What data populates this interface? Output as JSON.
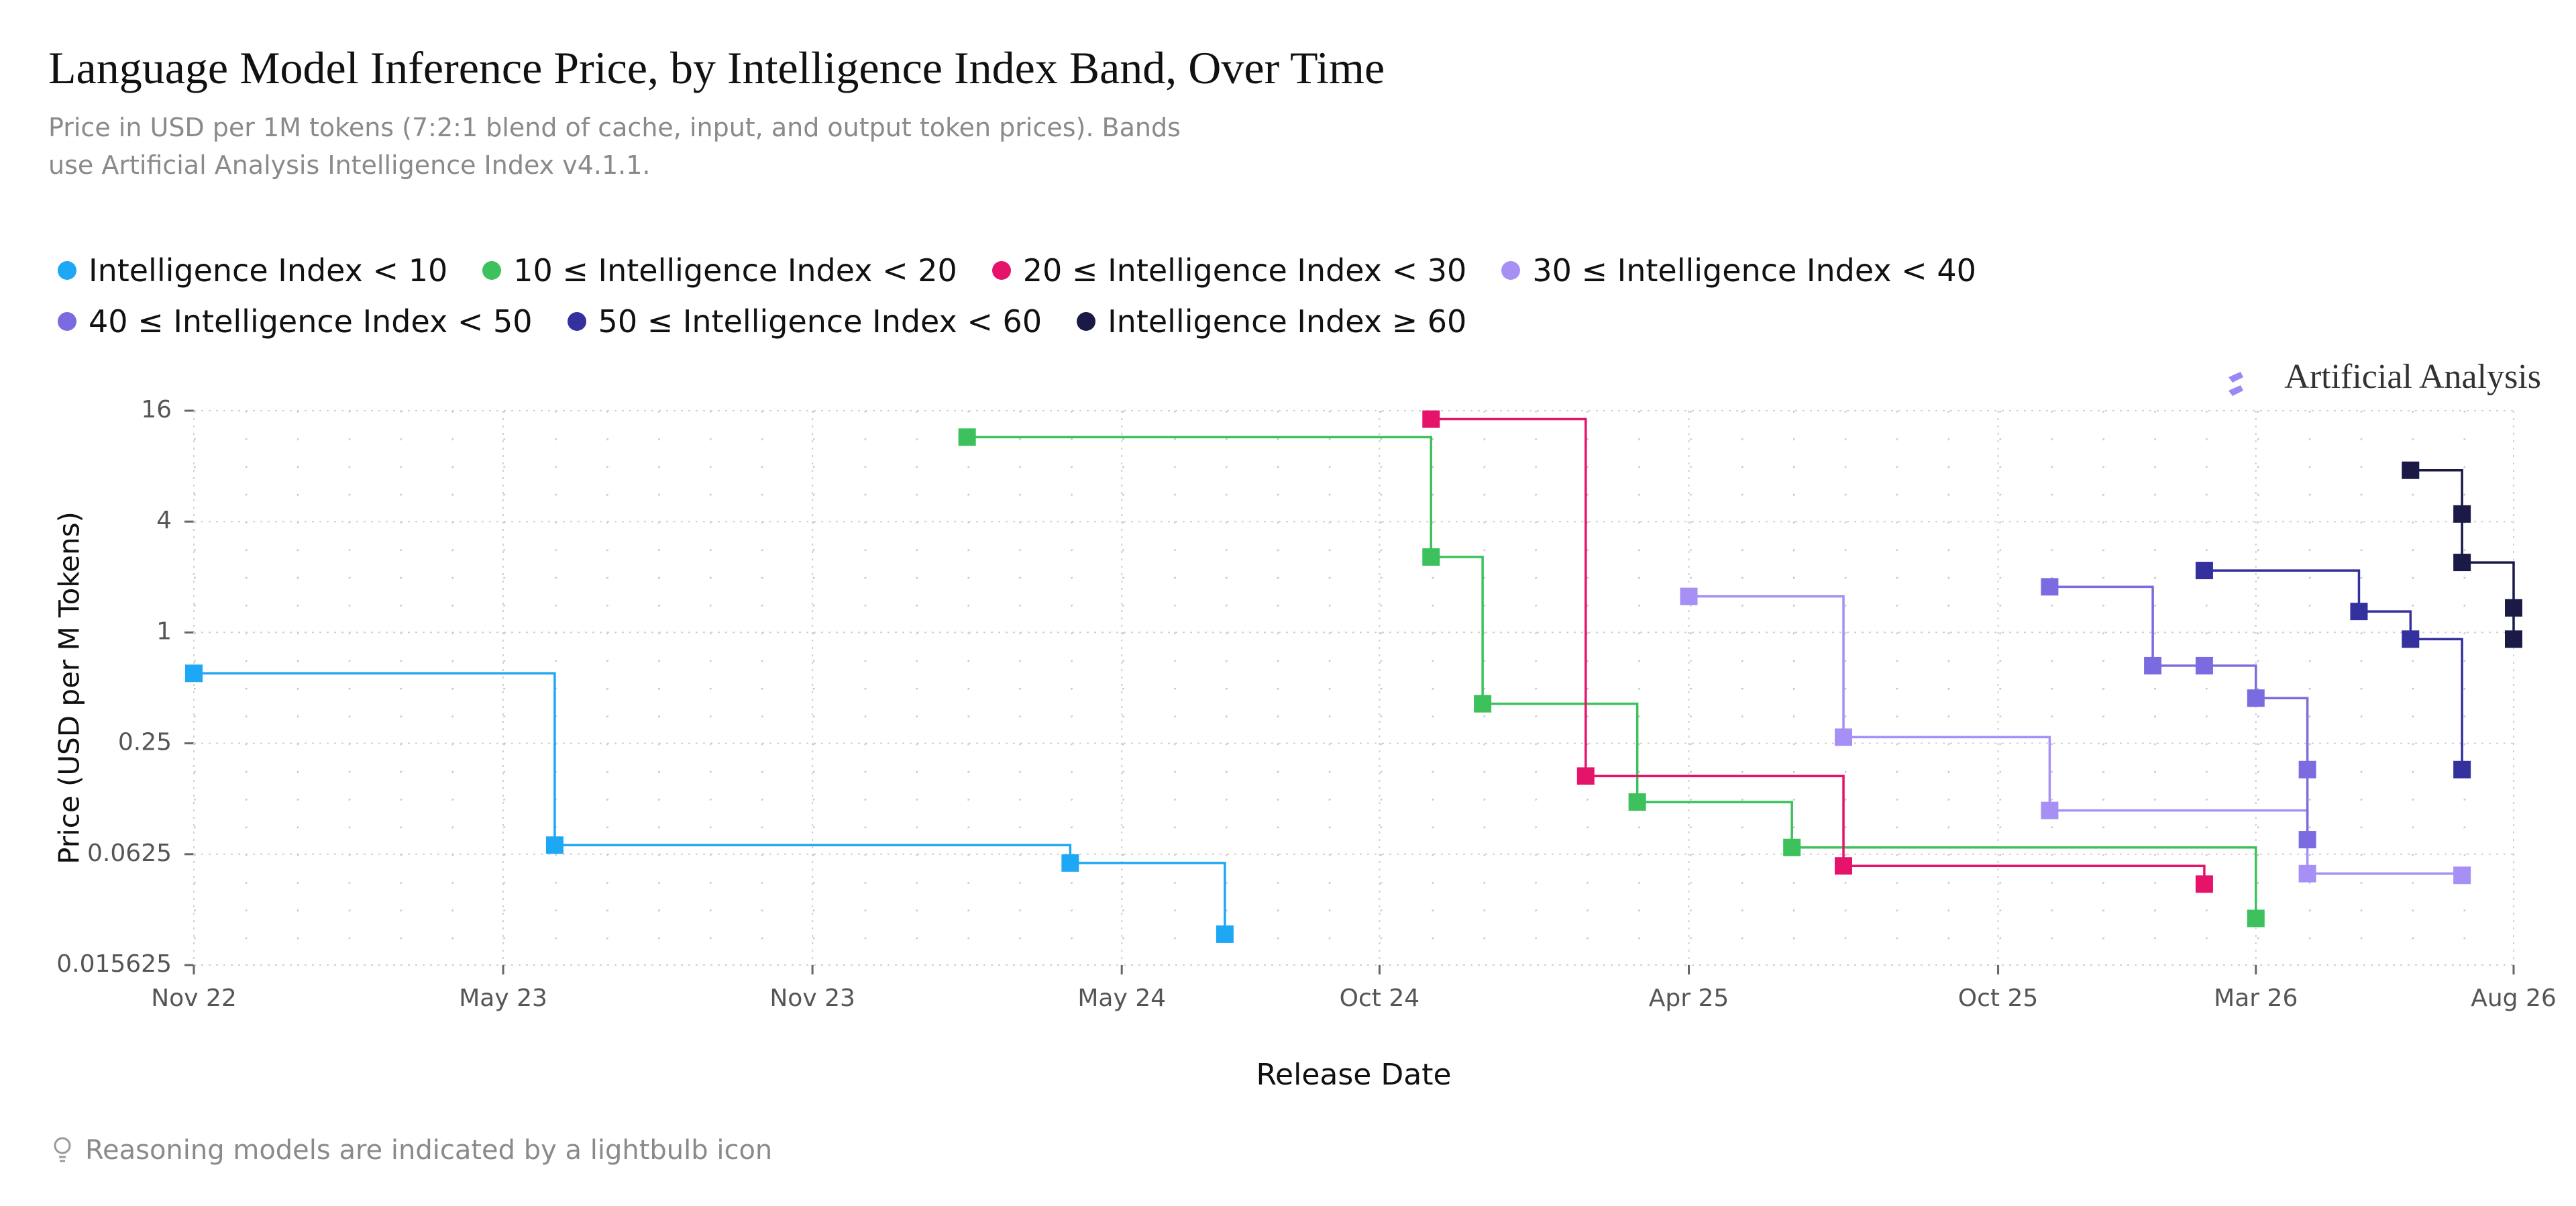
{
  "chart_data": {
    "type": "line",
    "step": "post",
    "title": "Language Model Inference Price, by Intelligence Index Band, Over Time",
    "subtitle": "Price in USD per 1M tokens (7:2:1 blend of cache, input, and output token prices). Bands use Artificial Analysis Intelligence Index v4.1.1.",
    "watermark": "Artificial Analysis",
    "x_label": "Release Date",
    "y_label": "Price (USD per M Tokens)",
    "footnote": "Reasoning models are indicated by a lightbulb icon",
    "log_scale": true,
    "grid": true,
    "xlim": [
      "2022-11",
      "2026-08"
    ],
    "xticks": [
      {
        "value": "2022-11",
        "label": "Nov 22"
      },
      {
        "value": "2023-05",
        "label": "May 23"
      },
      {
        "value": "2023-11",
        "label": "Nov 23"
      },
      {
        "value": "2024-05",
        "label": "May 24"
      },
      {
        "value": "2024-10",
        "label": "Oct 24"
      },
      {
        "value": "2025-04",
        "label": "Apr 25"
      },
      {
        "value": "2025-10",
        "label": "Oct 25"
      },
      {
        "value": "2026-03",
        "label": "Mar 26"
      },
      {
        "value": "2026-08",
        "label": "Aug 26"
      }
    ],
    "ylim": [
      0.015625,
      16
    ],
    "yticks": [
      16,
      4,
      1,
      0.25,
      0.0625,
      0.015625
    ],
    "series": [
      {
        "name": "Intelligence Index < 10",
        "color": "#1ea7f5",
        "x": [
          "2022-11",
          "2023-06",
          "2024-04",
          "2024-07"
        ],
        "values": [
          0.6,
          0.07,
          0.056,
          0.023
        ]
      },
      {
        "name": "10 ≤ Intelligence Index < 20",
        "color": "#3cc15c",
        "x": [
          "2024-02",
          "2024-11",
          "2024-12",
          "2025-03",
          "2025-06",
          "2026-03"
        ],
        "values": [
          11.5,
          2.57,
          0.41,
          0.12,
          0.068,
          0.028
        ]
      },
      {
        "name": "20 ≤ Intelligence Index < 30",
        "color": "#e6136b",
        "x": [
          "2024-11",
          "2025-02",
          "2025-07",
          "2026-02"
        ],
        "values": [
          14.4,
          0.166,
          0.054,
          0.043
        ]
      },
      {
        "name": "30 ≤ Intelligence Index < 40",
        "color": "#a68ff5",
        "x": [
          "2025-04",
          "2025-07",
          "2025-11",
          "2026-04",
          "2026-07"
        ],
        "values": [
          1.57,
          0.27,
          0.108,
          0.049,
          0.048
        ]
      },
      {
        "name": "40 ≤ Intelligence Index < 50",
        "color": "#7b6be0",
        "x": [
          "2025-11",
          "2026-01",
          "2026-02",
          "2026-03",
          "2026-04",
          "2026-04"
        ],
        "values": [
          1.77,
          0.66,
          0.66,
          0.44,
          0.18,
          0.075
        ]
      },
      {
        "name": "50 ≤ Intelligence Index < 60",
        "color": "#34309e",
        "x": [
          "2026-02",
          "2026-05",
          "2026-06",
          "2026-07"
        ],
        "values": [
          2.17,
          1.3,
          0.92,
          0.18
        ]
      },
      {
        "name": "Intelligence Index ≥ 60",
        "color": "#1b1a47",
        "x": [
          "2026-06",
          "2026-07",
          "2026-07",
          "2026-08",
          "2026-08"
        ],
        "values": [
          7.6,
          4.4,
          2.4,
          1.36,
          0.92
        ]
      }
    ]
  }
}
